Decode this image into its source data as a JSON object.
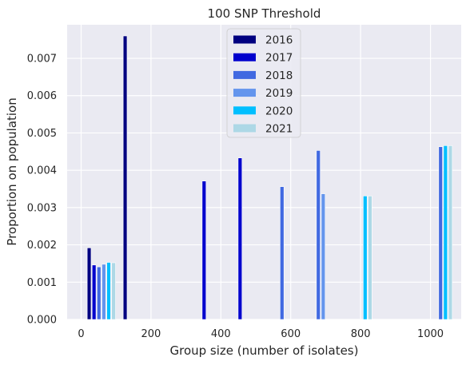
{
  "chart_data": {
    "type": "bar",
    "title": "100 SNP Threshold",
    "xlabel": "Group size (number of isolates)",
    "ylabel": "Proportion on population",
    "xlim": [
      -40,
      1088
    ],
    "ylim": [
      0,
      0.0079
    ],
    "xticks": [
      0,
      200,
      400,
      600,
      800,
      1000
    ],
    "xtick_labels": [
      "0",
      "200",
      "400",
      "600",
      "800",
      "1000"
    ],
    "yticks": [
      0,
      0.001,
      0.002,
      0.003,
      0.004,
      0.005,
      0.006,
      0.007
    ],
    "ytick_labels": [
      "0.000",
      "0.001",
      "0.002",
      "0.003",
      "0.004",
      "0.005",
      "0.006",
      "0.007"
    ],
    "bar_width": 11,
    "grid": true,
    "legend_position": "top-center",
    "background": "#eaeaf2",
    "series": [
      {
        "name": "2016",
        "color": "#000080",
        "x": [
          23,
          126
        ],
        "values": [
          0.00192,
          0.0076
        ]
      },
      {
        "name": "2017",
        "color": "#0000cd",
        "x": [
          37,
          352,
          455
        ],
        "values": [
          0.00146,
          0.00371,
          0.00433
        ]
      },
      {
        "name": "2018",
        "color": "#4169e1",
        "x": [
          51,
          575,
          679,
          1029
        ],
        "values": [
          0.00141,
          0.00356,
          0.00453,
          0.00463
        ]
      },
      {
        "name": "2019",
        "color": "#6495ed",
        "x": [
          65,
          693
        ],
        "values": [
          0.00148,
          0.00337
        ]
      },
      {
        "name": "2020",
        "color": "#00bfff",
        "x": [
          79,
          813,
          1043
        ],
        "values": [
          0.00153,
          0.00331,
          0.00466
        ]
      },
      {
        "name": "2021",
        "color": "#add8e6",
        "x": [
          93,
          827,
          1057
        ],
        "values": [
          0.00152,
          0.00331,
          0.00466
        ]
      }
    ]
  }
}
